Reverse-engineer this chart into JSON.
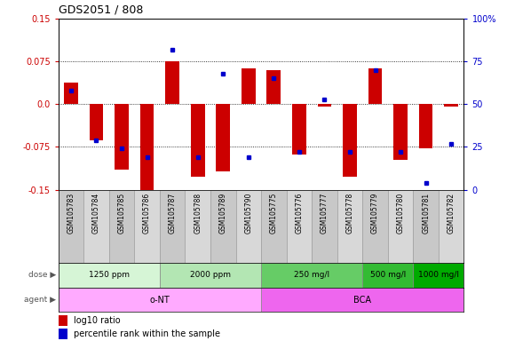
{
  "title": "GDS2051 / 808",
  "samples": [
    "GSM105783",
    "GSM105784",
    "GSM105785",
    "GSM105786",
    "GSM105787",
    "GSM105788",
    "GSM105789",
    "GSM105790",
    "GSM105775",
    "GSM105776",
    "GSM105777",
    "GSM105778",
    "GSM105779",
    "GSM105780",
    "GSM105781",
    "GSM105782"
  ],
  "log10_ratio": [
    0.038,
    -0.063,
    -0.115,
    -0.158,
    0.075,
    -0.128,
    -0.118,
    0.063,
    0.06,
    -0.088,
    -0.004,
    -0.128,
    0.063,
    -0.098,
    -0.078,
    -0.004
  ],
  "percentile_rank": [
    0.58,
    0.29,
    0.24,
    0.19,
    0.82,
    0.19,
    0.68,
    0.19,
    0.65,
    0.22,
    0.53,
    0.22,
    0.7,
    0.22,
    0.04,
    0.27
  ],
  "ylim": [
    -0.15,
    0.15
  ],
  "yticks_left": [
    -0.15,
    -0.075,
    0.0,
    0.075,
    0.15
  ],
  "yticks_right": [
    0,
    25,
    50,
    75,
    100
  ],
  "dose_groups": [
    {
      "label": "1250 ppm",
      "start": 0,
      "end": 4,
      "color": "#d6f5d6"
    },
    {
      "label": "2000 ppm",
      "start": 4,
      "end": 8,
      "color": "#b3e6b3"
    },
    {
      "label": "250 mg/l",
      "start": 8,
      "end": 12,
      "color": "#66cc66"
    },
    {
      "label": "500 mg/l",
      "start": 12,
      "end": 14,
      "color": "#33bb33"
    },
    {
      "label": "1000 mg/l",
      "start": 14,
      "end": 16,
      "color": "#00aa00"
    }
  ],
  "agent_groups": [
    {
      "label": "o-NT",
      "start": 0,
      "end": 8,
      "color": "#ffaaff"
    },
    {
      "label": "BCA",
      "start": 8,
      "end": 16,
      "color": "#ee66ee"
    }
  ],
  "bar_color": "#cc0000",
  "dot_color": "#0000cc",
  "label_color_left": "#cc0000",
  "label_color_right": "#0000cc",
  "legend_bar_label": "log10 ratio",
  "legend_dot_label": "percentile rank within the sample"
}
